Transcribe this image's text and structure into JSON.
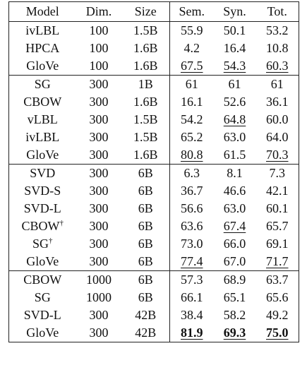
{
  "headers": [
    "Model",
    "Dim.",
    "Size",
    "Sem.",
    "Syn.",
    "Tot."
  ],
  "groups": [
    [
      {
        "model": "ivLBL",
        "dagger": false,
        "dim": "100",
        "size": "1.5B",
        "sem": {
          "v": "55.9"
        },
        "syn": {
          "v": "50.1"
        },
        "tot": {
          "v": "53.2"
        }
      },
      {
        "model": "HPCA",
        "dagger": false,
        "dim": "100",
        "size": "1.6B",
        "sem": {
          "v": "4.2"
        },
        "syn": {
          "v": "16.4"
        },
        "tot": {
          "v": "10.8"
        }
      },
      {
        "model": "GloVe",
        "dagger": false,
        "dim": "100",
        "size": "1.6B",
        "sem": {
          "v": "67.5",
          "u": true
        },
        "syn": {
          "v": "54.3",
          "u": true
        },
        "tot": {
          "v": "60.3",
          "u": true
        }
      }
    ],
    [
      {
        "model": "SG",
        "dagger": false,
        "dim": "300",
        "size": "1B",
        "sem": {
          "v": "61"
        },
        "syn": {
          "v": "61"
        },
        "tot": {
          "v": "61"
        }
      },
      {
        "model": "CBOW",
        "dagger": false,
        "dim": "300",
        "size": "1.6B",
        "sem": {
          "v": "16.1"
        },
        "syn": {
          "v": "52.6"
        },
        "tot": {
          "v": "36.1"
        }
      },
      {
        "model": "vLBL",
        "dagger": false,
        "dim": "300",
        "size": "1.5B",
        "sem": {
          "v": "54.2"
        },
        "syn": {
          "v": "64.8",
          "u": true
        },
        "tot": {
          "v": "60.0"
        }
      },
      {
        "model": "ivLBL",
        "dagger": false,
        "dim": "300",
        "size": "1.5B",
        "sem": {
          "v": "65.2"
        },
        "syn": {
          "v": "63.0"
        },
        "tot": {
          "v": "64.0"
        }
      },
      {
        "model": "GloVe",
        "dagger": false,
        "dim": "300",
        "size": "1.6B",
        "sem": {
          "v": "80.8",
          "u": true
        },
        "syn": {
          "v": "61.5"
        },
        "tot": {
          "v": "70.3",
          "u": true
        }
      }
    ],
    [
      {
        "model": "SVD",
        "dagger": false,
        "dim": "300",
        "size": "6B",
        "sem": {
          "v": "6.3"
        },
        "syn": {
          "v": "8.1"
        },
        "tot": {
          "v": "7.3"
        }
      },
      {
        "model": "SVD-S",
        "dagger": false,
        "dim": "300",
        "size": "6B",
        "sem": {
          "v": "36.7"
        },
        "syn": {
          "v": "46.6"
        },
        "tot": {
          "v": "42.1"
        }
      },
      {
        "model": "SVD-L",
        "dagger": false,
        "dim": "300",
        "size": "6B",
        "sem": {
          "v": "56.6"
        },
        "syn": {
          "v": "63.0"
        },
        "tot": {
          "v": "60.1"
        }
      },
      {
        "model": "CBOW",
        "dagger": true,
        "dim": "300",
        "size": "6B",
        "sem": {
          "v": "63.6"
        },
        "syn": {
          "v": "67.4",
          "u": true
        },
        "tot": {
          "v": "65.7"
        }
      },
      {
        "model": "SG",
        "dagger": true,
        "dim": "300",
        "size": "6B",
        "sem": {
          "v": "73.0"
        },
        "syn": {
          "v": "66.0"
        },
        "tot": {
          "v": "69.1"
        }
      },
      {
        "model": "GloVe",
        "dagger": false,
        "dim": "300",
        "size": "6B",
        "sem": {
          "v": "77.4",
          "u": true
        },
        "syn": {
          "v": "67.0"
        },
        "tot": {
          "v": "71.7",
          "u": true
        }
      }
    ],
    [
      {
        "model": "CBOW",
        "dagger": false,
        "dim": "1000",
        "size": "6B",
        "sem": {
          "v": "57.3"
        },
        "syn": {
          "v": "68.9"
        },
        "tot": {
          "v": "63.7"
        }
      },
      {
        "model": "SG",
        "dagger": false,
        "dim": "1000",
        "size": "6B",
        "sem": {
          "v": "66.1"
        },
        "syn": {
          "v": "65.1"
        },
        "tot": {
          "v": "65.6"
        }
      },
      {
        "model": "SVD-L",
        "dagger": false,
        "dim": "300",
        "size": "42B",
        "sem": {
          "v": "38.4"
        },
        "syn": {
          "v": "58.2"
        },
        "tot": {
          "v": "49.2"
        }
      },
      {
        "model": "GloVe",
        "dagger": false,
        "dim": "300",
        "size": "42B",
        "sem": {
          "v": "81.9",
          "u": true,
          "b": true
        },
        "syn": {
          "v": "69.3",
          "u": true,
          "b": true
        },
        "tot": {
          "v": "75.0",
          "u": true,
          "b": true
        }
      }
    ]
  ],
  "dagger_symbol": "†"
}
